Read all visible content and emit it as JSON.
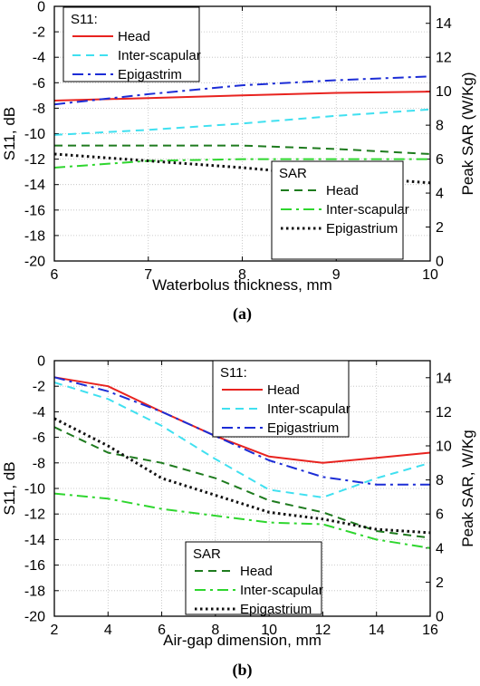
{
  "chart_data": [
    {
      "type": "line",
      "caption": "(a)",
      "xlabel": "Waterbolus thickness, mm",
      "ylabel_left": "S11, dB",
      "ylabel_right": "Peak SAR (W/Kg)",
      "xlim": [
        6,
        10
      ],
      "ylim_left": [
        -20,
        0
      ],
      "ylim_right": [
        0,
        15
      ],
      "x_ticks": [
        "6",
        "7",
        "8",
        "9",
        "10"
      ],
      "y_left_ticks": [
        "0",
        "-2",
        "-4",
        "-6",
        "-8",
        "-10",
        "-12",
        "-14",
        "-16",
        "-18",
        "-20"
      ],
      "y_right_ticks": [
        "0",
        "2",
        "4",
        "6",
        "8",
        "10",
        "12",
        "14"
      ],
      "grid": true,
      "legend_s11_title": "S11:",
      "legend_sar_title": "SAR",
      "s11_legend_placement": "top-left",
      "sar_legend_placement": "bottom-right",
      "s11_series": [
        {
          "name": "Head",
          "color": "#e8231f",
          "dash": "solid",
          "x": [
            6,
            7,
            8,
            9,
            10
          ],
          "y": [
            -7.4,
            -7.2,
            -7.0,
            -6.8,
            -6.7
          ]
        },
        {
          "name": "Inter-scapular",
          "color": "#40e0f0",
          "dash": "dash",
          "x": [
            6,
            7,
            8,
            9,
            10
          ],
          "y": [
            -10.1,
            -9.7,
            -9.2,
            -8.6,
            -8.1
          ]
        },
        {
          "name": "Epigastrim",
          "color": "#1c2dd6",
          "dash": "dashdot",
          "x": [
            6,
            7,
            8,
            9,
            10
          ],
          "y": [
            -7.7,
            -6.9,
            -6.2,
            -5.8,
            -5.5
          ]
        }
      ],
      "sar_series": [
        {
          "name": "Head",
          "color": "#1e7b1e",
          "dash": "dash",
          "x": [
            6,
            7,
            8,
            9,
            10
          ],
          "y": [
            6.8,
            6.8,
            6.8,
            6.6,
            6.3
          ]
        },
        {
          "name": "Inter-scapular",
          "color": "#2ed62e",
          "dash": "dashdot",
          "x": [
            6,
            7,
            8,
            9,
            10
          ],
          "y": [
            5.5,
            5.9,
            6.0,
            6.0,
            6.0
          ]
        },
        {
          "name": "Epigastrium",
          "color": "#111111",
          "dash": "dot",
          "x": [
            6,
            7,
            8,
            9,
            10
          ],
          "y": [
            6.3,
            5.9,
            5.5,
            5.0,
            4.6
          ]
        }
      ]
    },
    {
      "type": "line",
      "caption": "(b)",
      "xlabel": "Air-gap dimension, mm",
      "ylabel_left": "S11, dB",
      "ylabel_right": "Peak SAR, W/Kg",
      "xlim": [
        2,
        16
      ],
      "ylim_left": [
        -20,
        0
      ],
      "ylim_right": [
        0,
        15
      ],
      "x_ticks": [
        "2",
        "4",
        "6",
        "8",
        "10",
        "12",
        "14",
        "16"
      ],
      "y_left_ticks": [
        "0",
        "-2",
        "-4",
        "-6",
        "-8",
        "-10",
        "-12",
        "-14",
        "-16",
        "-18",
        "-20"
      ],
      "y_right_ticks": [
        "0",
        "2",
        "4",
        "6",
        "8",
        "10",
        "12",
        "14"
      ],
      "grid": true,
      "legend_s11_title": "S11:",
      "legend_sar_title": "SAR",
      "s11_legend_placement": "top-right",
      "sar_legend_placement": "bottom-center",
      "s11_series": [
        {
          "name": "Head",
          "color": "#e8231f",
          "dash": "solid",
          "x": [
            2,
            4,
            6,
            8,
            10,
            12,
            14,
            16
          ],
          "y": [
            -1.3,
            -2.0,
            -4.0,
            -5.9,
            -7.5,
            -8.0,
            -7.6,
            -7.2
          ]
        },
        {
          "name": "Inter-scapular",
          "color": "#40e0f0",
          "dash": "dash",
          "x": [
            2,
            4,
            6,
            8,
            10,
            12,
            14,
            16
          ],
          "y": [
            -1.7,
            -3.0,
            -5.1,
            -7.7,
            -10.1,
            -10.7,
            -9.2,
            -8.0
          ]
        },
        {
          "name": "Epigastrium",
          "color": "#1c2dd6",
          "dash": "dashdot",
          "x": [
            2,
            4,
            6,
            8,
            10,
            12,
            14,
            16
          ],
          "y": [
            -1.3,
            -2.4,
            -4.0,
            -5.9,
            -7.8,
            -9.1,
            -9.7,
            -9.7
          ]
        }
      ],
      "sar_series": [
        {
          "name": "Head",
          "color": "#1e7b1e",
          "dash": "dash",
          "x": [
            2,
            4,
            6,
            8,
            10,
            12,
            14,
            16
          ],
          "y": [
            11.1,
            9.6,
            9.0,
            8.1,
            6.8,
            6.1,
            5.0,
            4.6
          ]
        },
        {
          "name": "Inter-scapular",
          "color": "#2ed62e",
          "dash": "dashdot",
          "x": [
            2,
            4,
            6,
            8,
            10,
            12,
            14,
            16
          ],
          "y": [
            7.2,
            6.9,
            6.3,
            5.9,
            5.5,
            5.4,
            4.5,
            4.0
          ]
        },
        {
          "name": "Epigastrium",
          "color": "#111111",
          "dash": "dot",
          "x": [
            2,
            4,
            6,
            8,
            10,
            12,
            14,
            16
          ],
          "y": [
            11.6,
            10.0,
            8.1,
            7.1,
            6.1,
            5.7,
            5.1,
            4.9
          ]
        }
      ]
    }
  ]
}
